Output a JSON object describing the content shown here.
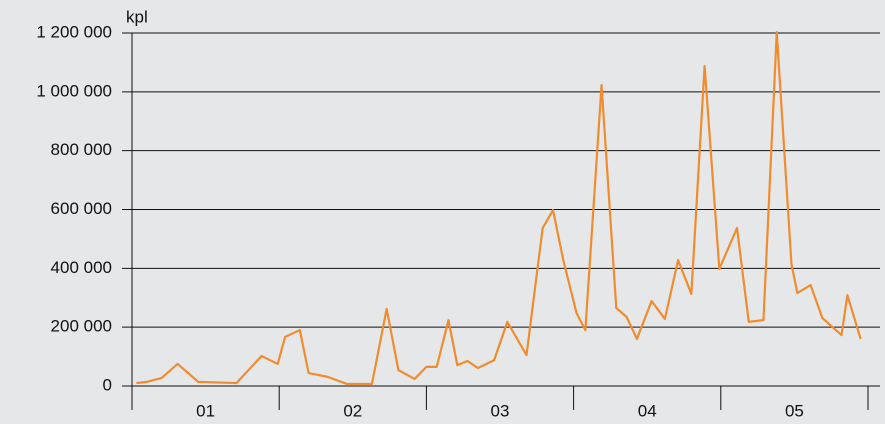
{
  "chart_data": {
    "type": "line",
    "y_label": "kpl",
    "categories": [
      "01",
      "02",
      "03",
      "04",
      "05"
    ],
    "xlim": [
      0,
      5
    ],
    "xticks": [
      0,
      1,
      2,
      3,
      4,
      5
    ],
    "ylim": [
      0,
      1200000
    ],
    "yticks": [
      0,
      {
        "value": 200000,
        "label": "200 000"
      },
      {
        "value": 400000,
        "label": "400 000"
      },
      {
        "value": 600000,
        "label": "600 000"
      },
      {
        "value": 800000,
        "label": "800 000"
      },
      {
        "value": 1000000,
        "label": "1 000 000"
      },
      {
        "value": 1200000,
        "label": "1 200 000"
      }
    ],
    "grid": true,
    "series": [
      {
        "color": "#f08c2e",
        "x": [
          0.03,
          0.1,
          0.2,
          0.31,
          0.45,
          0.71,
          0.88,
          0.99,
          1.04,
          1.14,
          1.2,
          1.33,
          1.46,
          1.63,
          1.73,
          1.81,
          1.92,
          2.0,
          2.07,
          2.15,
          2.21,
          2.28,
          2.35,
          2.46,
          2.55,
          2.68,
          2.79,
          2.86,
          2.93,
          3.02,
          3.08,
          3.19,
          3.29,
          3.36,
          3.43,
          3.53,
          3.62,
          3.71,
          3.8,
          3.89,
          3.99,
          4.11,
          4.19,
          4.29,
          4.38,
          4.48,
          4.52,
          4.61,
          4.69,
          4.82,
          4.86,
          4.95
        ],
        "values": [
          10000,
          14000,
          27000,
          75000,
          14000,
          10000,
          102000,
          75000,
          167000,
          190000,
          44000,
          31000,
          7000,
          7000,
          262000,
          54000,
          24000,
          65000,
          65000,
          224000,
          71000,
          85000,
          61000,
          88000,
          218000,
          105000,
          537000,
          598000,
          428000,
          248000,
          190000,
          1023000,
          265000,
          235000,
          160000,
          289000,
          228000,
          428000,
          313000,
          1088000,
          398000,
          537000,
          218000,
          224000,
          1203000,
          415000,
          316000,
          343000,
          231000,
          173000,
          309000,
          160000
        ]
      }
    ]
  }
}
